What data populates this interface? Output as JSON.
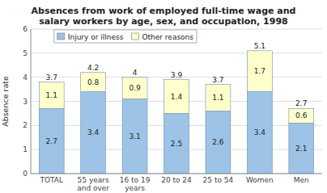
{
  "chart_data": {
    "type": "bar",
    "stacked": true,
    "title": "Absences from work of employed full-time wage and\nsalary workers by age, sex, and occupation, 1998",
    "categories": [
      "TOTAL",
      "55 years\nand over",
      "16 to 19\nyears",
      "20 to 24",
      "25 to 54",
      "Women",
      "Men"
    ],
    "series": [
      {
        "name": "Injury or illness",
        "color": "#9DC3E6",
        "values": [
          2.7,
          3.4,
          3.1,
          2.5,
          2.6,
          3.4,
          2.1
        ]
      },
      {
        "name": "Other reasons",
        "color": "#FFFFCC",
        "values": [
          1.1,
          0.8,
          0.9,
          1.4,
          1.1,
          1.7,
          0.6
        ]
      }
    ],
    "totals": [
      3.7,
      4.2,
      4.0,
      3.9,
      3.7,
      5.1,
      2.7
    ],
    "ylabel": "Absence rate",
    "ylim": [
      0,
      6
    ],
    "yticks": [
      0,
      1,
      2,
      3,
      4,
      5,
      6
    ],
    "grid": true,
    "legend": "upper left",
    "data_labels": true
  }
}
